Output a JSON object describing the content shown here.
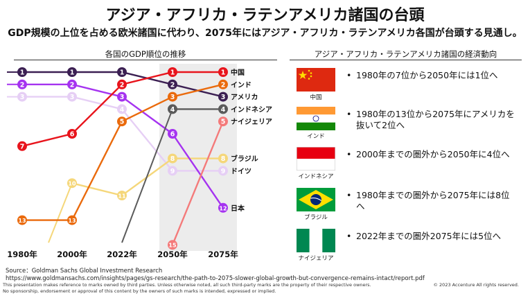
{
  "title": "アジア・アフリカ・ラテンアメリカ諸国の台頭",
  "subtitle": "GDP規模の上位を占める欧米諸国に代わり、2075年にはアジア・アフリカ・ラテンアメリカ各国が台頭する見通し。",
  "left_panel_title": "各国のGDP順位の推移",
  "right_panel_title": "アジア・アフリカ・ラテンアメリカ諸国の経済動向",
  "chart_data": {
    "type": "line",
    "title": "各国のGDP順位の推移",
    "x": [
      "1980年",
      "2000年",
      "2022年",
      "2050年",
      "2075年"
    ],
    "y_axis": "rank (1 = top, inverted)",
    "ylim": [
      1,
      15
    ],
    "series": [
      {
        "name": "中国",
        "color": "#e8141c",
        "ranks": [
          7,
          6,
          2,
          1,
          1
        ]
      },
      {
        "name": "インド",
        "color": "#ea6a0c",
        "ranks": [
          13,
          13,
          5,
          3,
          2
        ]
      },
      {
        "name": "アメリカ",
        "color": "#3b1f52",
        "ranks": [
          1,
          1,
          1,
          2,
          3
        ]
      },
      {
        "name": "インドネシア",
        "color": "#5b5b5b",
        "ranks": [
          null,
          null,
          null,
          4,
          4
        ]
      },
      {
        "name": "ナイジェリア",
        "color": "#f47a7a",
        "ranks": [
          null,
          null,
          null,
          15,
          5
        ]
      },
      {
        "name": "ブラジル",
        "color": "#f5d77a",
        "ranks": [
          null,
          10,
          11,
          8,
          8
        ]
      },
      {
        "name": "ドイツ",
        "color": "#e6cff5",
        "ranks": [
          3,
          3,
          4,
          9,
          9
        ]
      },
      {
        "name": "日本",
        "color": "#a533f0",
        "ranks": [
          2,
          2,
          3,
          6,
          12
        ]
      }
    ]
  },
  "flags": [
    {
      "country": "中国",
      "flag": "china-flag",
      "text": "1980年の7位から2050年には1位へ"
    },
    {
      "country": "インド",
      "flag": "india-flag",
      "text": "1980年の13位から2075年にアメリカを抜いて2位へ"
    },
    {
      "country": "インドネシア",
      "flag": "indonesia-flag",
      "text": "2000年までの圏外から2050年に4位へ"
    },
    {
      "country": "ブラジル",
      "flag": "brazil-flag",
      "text": "1980年までの圏外から2075年には8位へ"
    },
    {
      "country": "ナイジェリア",
      "flag": "nigeria-flag",
      "text": "2022年までの圏外2075年には5位へ"
    }
  ],
  "bullet": "•",
  "source_line1": "Source：Goldman Sachs Global Investment Research",
  "source_line2": "https://www.goldmansachs.com/insights/pages/gs-research/the-path-to-2075-slower-global-growth-but-convergence-remains-intact/report.pdf",
  "disclaimer1": "This presentation makes reference to marks owned by third parties. Unless otherwise noted, all such third-party marks are the property of their respective owners.",
  "disclaimer2": "No sponsorship, endorsement or approval of this content by the owners of such marks is intended, expressed or implied.",
  "copyright": "© 2023 Accenture All rights reserved."
}
